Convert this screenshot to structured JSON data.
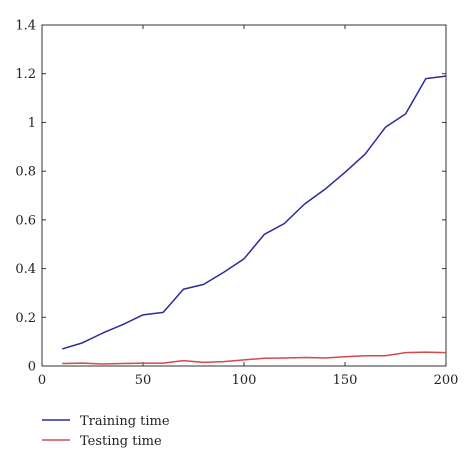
{
  "chart_data": {
    "type": "line",
    "title": "",
    "xlabel": "",
    "ylabel": "",
    "xlim": [
      0,
      200
    ],
    "ylim": [
      0,
      1.4
    ],
    "x_ticks": [
      "0",
      "50",
      "100",
      "150",
      "200"
    ],
    "y_ticks": [
      "0",
      "0.2",
      "0.4",
      "0.6",
      "0.8",
      "1",
      "1.2",
      "1.4"
    ],
    "grid": false,
    "legend_position": "bottom-left",
    "series": [
      {
        "name": "Training time",
        "color": "#2b2b9b",
        "x": [
          10,
          20,
          30,
          40,
          50,
          60,
          70,
          80,
          90,
          100,
          110,
          120,
          130,
          140,
          150,
          160,
          170,
          180,
          190,
          200
        ],
        "y": [
          0.07,
          0.095,
          0.135,
          0.17,
          0.21,
          0.22,
          0.315,
          0.335,
          0.385,
          0.44,
          0.54,
          0.585,
          0.665,
          0.725,
          0.795,
          0.87,
          0.98,
          1.035,
          1.18,
          1.19
        ]
      },
      {
        "name": "Testing time",
        "color": "#d14b4b",
        "x": [
          10,
          20,
          30,
          40,
          50,
          60,
          70,
          80,
          90,
          100,
          110,
          120,
          130,
          140,
          150,
          160,
          170,
          180,
          190,
          200
        ],
        "y": [
          0.01,
          0.012,
          0.008,
          0.01,
          0.012,
          0.012,
          0.022,
          0.015,
          0.018,
          0.025,
          0.032,
          0.033,
          0.035,
          0.033,
          0.038,
          0.042,
          0.042,
          0.055,
          0.057,
          0.055
        ]
      }
    ]
  }
}
